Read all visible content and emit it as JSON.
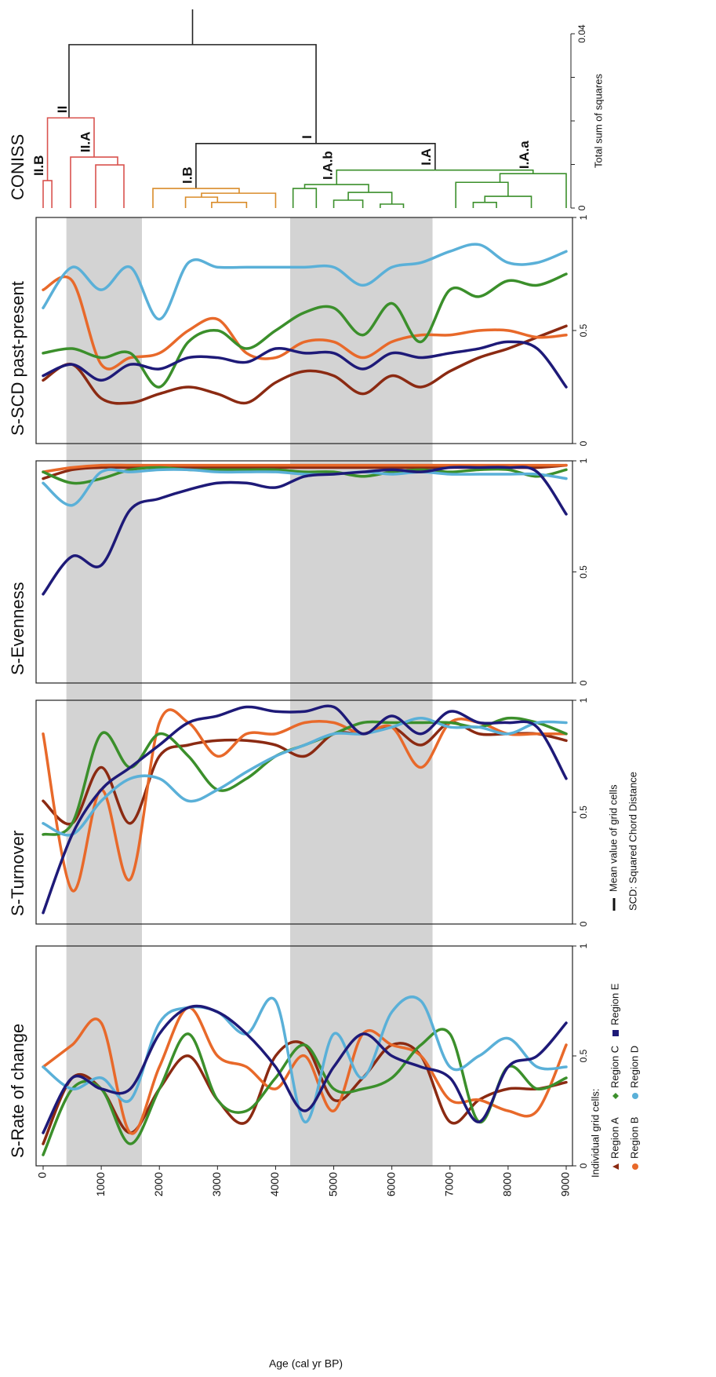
{
  "chart_data": {
    "type": "multi-panel",
    "xlabel": "Age (cal yr BP)",
    "xlim": [
      0,
      9000
    ],
    "xticks": [
      0,
      1000,
      2000,
      3000,
      4000,
      5000,
      6000,
      7000,
      8000,
      9000
    ],
    "x": [
      0,
      500,
      1000,
      1500,
      2000,
      2500,
      3000,
      3500,
      4000,
      4500,
      5000,
      5500,
      6000,
      6500,
      7000,
      7500,
      8000,
      8500,
      9000
    ],
    "shaded_x": [
      [
        400,
        1700
      ],
      [
        4250,
        6700
      ]
    ],
    "legend_title": "Individual grid cells:",
    "mean_label": "Mean value of grid cells",
    "note": "SCD: Squared Chord Distance",
    "series": [
      {
        "name": "Region A",
        "color": "#8b2a12",
        "marker": "triangle"
      },
      {
        "name": "Region B",
        "color": "#e8692a",
        "marker": "circle"
      },
      {
        "name": "Region C",
        "color": "#3b8f2b",
        "marker": "diamond"
      },
      {
        "name": "Region D",
        "color": "#5ab0d8",
        "marker": "circle"
      },
      {
        "name": "Region E",
        "color": "#1e1a78",
        "marker": "square"
      }
    ],
    "panels": [
      {
        "type": "line",
        "title": "S-Rate of change",
        "ylim": [
          0,
          1
        ],
        "yticks": [
          0,
          0.5,
          1
        ],
        "values": [
          [
            0.1,
            0.4,
            0.35,
            0.15,
            0.35,
            0.5,
            0.3,
            0.2,
            0.5,
            0.55,
            0.3,
            0.4,
            0.55,
            0.5,
            0.2,
            0.3,
            0.35,
            0.35,
            0.38
          ],
          [
            0.45,
            0.55,
            0.65,
            0.15,
            0.45,
            0.72,
            0.5,
            0.45,
            0.35,
            0.5,
            0.25,
            0.6,
            0.55,
            0.5,
            0.3,
            0.3,
            0.25,
            0.25,
            0.55
          ],
          [
            0.05,
            0.35,
            0.35,
            0.1,
            0.35,
            0.6,
            0.3,
            0.25,
            0.4,
            0.55,
            0.35,
            0.35,
            0.4,
            0.55,
            0.6,
            0.2,
            0.45,
            0.35,
            0.4
          ],
          [
            0.45,
            0.35,
            0.4,
            0.3,
            0.65,
            0.72,
            0.7,
            0.6,
            0.75,
            0.2,
            0.6,
            0.4,
            0.7,
            0.75,
            0.45,
            0.5,
            0.58,
            0.45,
            0.45
          ],
          [
            0.15,
            0.4,
            0.35,
            0.35,
            0.6,
            0.72,
            0.7,
            0.6,
            0.45,
            0.25,
            0.45,
            0.6,
            0.5,
            0.45,
            0.4,
            0.2,
            0.45,
            0.5,
            0.65
          ]
        ]
      },
      {
        "type": "line",
        "title": "S-Turnover",
        "ylim": [
          0,
          1
        ],
        "yticks": [
          0,
          0.5,
          1
        ],
        "values": [
          [
            0.55,
            0.45,
            0.7,
            0.45,
            0.75,
            0.8,
            0.82,
            0.82,
            0.8,
            0.75,
            0.85,
            0.85,
            0.88,
            0.8,
            0.9,
            0.85,
            0.85,
            0.85,
            0.82
          ],
          [
            0.85,
            0.15,
            0.6,
            0.2,
            0.9,
            0.9,
            0.75,
            0.85,
            0.85,
            0.9,
            0.9,
            0.85,
            0.88,
            0.7,
            0.9,
            0.9,
            0.85,
            0.85,
            0.85
          ],
          [
            0.4,
            0.45,
            0.85,
            0.7,
            0.85,
            0.75,
            0.6,
            0.65,
            0.75,
            0.8,
            0.85,
            0.9,
            0.9,
            0.9,
            0.9,
            0.88,
            0.92,
            0.9,
            0.85
          ],
          [
            0.45,
            0.4,
            0.55,
            0.65,
            0.65,
            0.55,
            0.6,
            0.68,
            0.75,
            0.8,
            0.85,
            0.85,
            0.88,
            0.92,
            0.88,
            0.88,
            0.85,
            0.9,
            0.9
          ],
          [
            0.05,
            0.4,
            0.6,
            0.7,
            0.8,
            0.9,
            0.93,
            0.97,
            0.95,
            0.95,
            0.97,
            0.85,
            0.93,
            0.85,
            0.95,
            0.9,
            0.9,
            0.88,
            0.65
          ]
        ]
      },
      {
        "type": "line",
        "title": "S-Evenness",
        "ylim": [
          0,
          1
        ],
        "yticks": [
          0,
          0.5,
          1
        ],
        "values": [
          [
            0.92,
            0.96,
            0.97,
            0.97,
            0.97,
            0.97,
            0.97,
            0.97,
            0.97,
            0.97,
            0.97,
            0.97,
            0.97,
            0.97,
            0.97,
            0.97,
            0.97,
            0.97,
            0.98
          ],
          [
            0.95,
            0.97,
            0.98,
            0.98,
            0.98,
            0.98,
            0.98,
            0.98,
            0.98,
            0.98,
            0.98,
            0.98,
            0.98,
            0.98,
            0.98,
            0.98,
            0.98,
            0.98,
            0.98
          ],
          [
            0.95,
            0.9,
            0.92,
            0.96,
            0.97,
            0.96,
            0.96,
            0.96,
            0.96,
            0.95,
            0.95,
            0.93,
            0.95,
            0.96,
            0.95,
            0.96,
            0.96,
            0.93,
            0.96
          ],
          [
            0.9,
            0.8,
            0.95,
            0.95,
            0.96,
            0.96,
            0.95,
            0.95,
            0.95,
            0.94,
            0.94,
            0.95,
            0.94,
            0.95,
            0.94,
            0.94,
            0.94,
            0.94,
            0.92
          ],
          [
            0.4,
            0.57,
            0.53,
            0.78,
            0.83,
            0.87,
            0.9,
            0.9,
            0.88,
            0.93,
            0.94,
            0.95,
            0.96,
            0.95,
            0.97,
            0.97,
            0.97,
            0.95,
            0.76
          ]
        ]
      },
      {
        "type": "line",
        "title": "S-SCD past-present",
        "ylim": [
          0,
          1
        ],
        "yticks": [
          0,
          0.5,
          1
        ],
        "values": [
          [
            0.28,
            0.35,
            0.2,
            0.18,
            0.22,
            0.25,
            0.22,
            0.18,
            0.27,
            0.32,
            0.3,
            0.22,
            0.3,
            0.25,
            0.32,
            0.38,
            0.42,
            0.47,
            0.52
          ],
          [
            0.68,
            0.72,
            0.35,
            0.38,
            0.4,
            0.5,
            0.55,
            0.4,
            0.38,
            0.45,
            0.45,
            0.38,
            0.45,
            0.48,
            0.48,
            0.5,
            0.5,
            0.47,
            0.48
          ],
          [
            0.4,
            0.42,
            0.38,
            0.4,
            0.25,
            0.45,
            0.5,
            0.42,
            0.5,
            0.58,
            0.6,
            0.48,
            0.62,
            0.45,
            0.68,
            0.65,
            0.72,
            0.7,
            0.75
          ],
          [
            0.6,
            0.78,
            0.68,
            0.78,
            0.55,
            0.8,
            0.78,
            0.78,
            0.78,
            0.78,
            0.78,
            0.7,
            0.78,
            0.8,
            0.85,
            0.88,
            0.8,
            0.8,
            0.85
          ],
          [
            0.3,
            0.35,
            0.28,
            0.35,
            0.33,
            0.38,
            0.38,
            0.36,
            0.42,
            0.4,
            0.4,
            0.33,
            0.4,
            0.38,
            0.4,
            0.42,
            0.45,
            0.42,
            0.25
          ]
        ]
      },
      {
        "type": "dendrogram",
        "title": "CONISS",
        "ylabel": "Total sum of squares",
        "ylim": [
          0,
          0.04
        ],
        "yticks": [
          0,
          0.04
        ],
        "minor_yticks": [
          0.01,
          0.02,
          0.03
        ],
        "root_height": 0.0456,
        "merges": [
          {
            "ages": [
              445,
              4696
            ],
            "height": 0.0375,
            "child_heights": [
              0.0207,
              0.0148
            ],
            "color": "#222222"
          },
          {
            "ages": [
              75,
              877
            ],
            "height": 0.0207,
            "child_heights": [
              0.0063,
              0.0117
            ],
            "color": "#d9534f",
            "label": "II"
          },
          {
            "ages": [
              0,
              150
            ],
            "height": 0.0063,
            "child_heights": [
              0,
              0
            ],
            "color": "#d9534f",
            "label": "II.B"
          },
          {
            "ages": [
              472,
              1282
            ],
            "height": 0.0117,
            "child_heights": [
              0,
              0.0099
            ],
            "color": "#d9534f",
            "label": "II.A"
          },
          {
            "ages": [
              904,
              1390
            ],
            "height": 0.0099,
            "child_heights": [
              0,
              0
            ],
            "color": "#d9534f"
          },
          {
            "ages": [
              2630,
              6745
            ],
            "height": 0.0148,
            "child_heights": [
              0.0045,
              0.0087
            ],
            "color": "#222222",
            "label": "I"
          },
          {
            "ages": [
              1889,
              3373
            ],
            "height": 0.0045,
            "child_heights": [
              0,
              0.0034
            ],
            "color": "#d98c2a",
            "label": "I.B"
          },
          {
            "ages": [
              2725,
              4000
            ],
            "height": 0.0034,
            "child_heights": [
              0.0025,
              0
            ],
            "color": "#d98c2a"
          },
          {
            "ages": [
              2450,
              3000
            ],
            "height": 0.0025,
            "child_heights": [
              0,
              0.0013
            ],
            "color": "#d98c2a"
          },
          {
            "ages": [
              2900,
              3500
            ],
            "height": 0.0013,
            "child_heights": [
              0,
              0
            ],
            "color": "#d98c2a"
          },
          {
            "ages": [
              5050,
              8430
            ],
            "height": 0.0087,
            "child_heights": [
              0.0054,
              0.0079
            ],
            "color": "#3b8f2b",
            "label": "I.A"
          },
          {
            "ages": [
              4500,
              5600
            ],
            "height": 0.0054,
            "child_heights": [
              0.0045,
              0.0036
            ],
            "color": "#3b8f2b",
            "label": "I.A.b"
          },
          {
            "ages": [
              4300,
              4700
            ],
            "height": 0.0045,
            "child_heights": [
              0,
              0
            ],
            "color": "#3b8f2b"
          },
          {
            "ages": [
              5250,
              6000
            ],
            "height": 0.0036,
            "child_heights": [
              0.0018,
              0.0009
            ],
            "color": "#3b8f2b"
          },
          {
            "ages": [
              5000,
              5500
            ],
            "height": 0.0018,
            "child_heights": [
              0,
              0
            ],
            "color": "#3b8f2b"
          },
          {
            "ages": [
              5800,
              6200
            ],
            "height": 0.0009,
            "child_heights": [
              0,
              0
            ],
            "color": "#3b8f2b"
          },
          {
            "ages": [
              7860,
              9000
            ],
            "height": 0.0079,
            "child_heights": [
              0.0059,
              0
            ],
            "color": "#3b8f2b",
            "label": "I.A.a"
          },
          {
            "ages": [
              7100,
              8000
            ],
            "height": 0.0059,
            "child_heights": [
              0,
              0.0027
            ],
            "color": "#3b8f2b"
          },
          {
            "ages": [
              7600,
              8400
            ],
            "height": 0.0027,
            "child_heights": [
              0.0013,
              0
            ],
            "color": "#3b8f2b"
          },
          {
            "ages": [
              7400,
              7800
            ],
            "height": 0.0013,
            "child_heights": [
              0,
              0
            ],
            "color": "#3b8f2b"
          }
        ]
      }
    ]
  }
}
